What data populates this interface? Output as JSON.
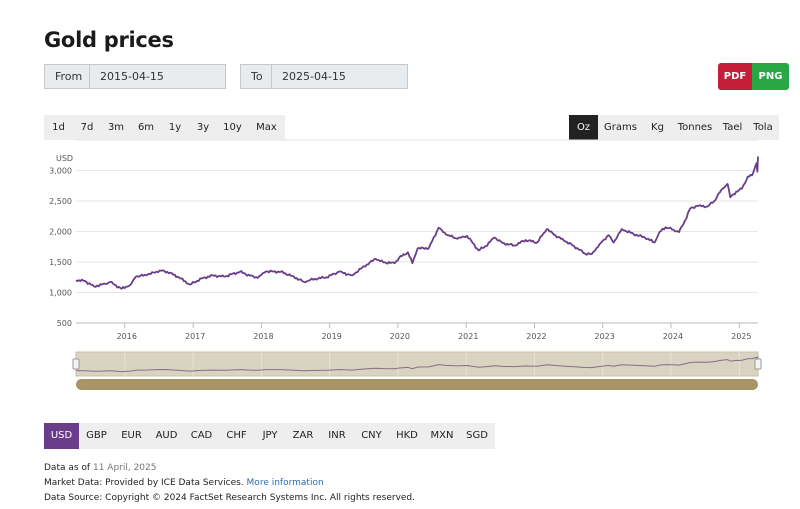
{
  "page": {
    "title": "Gold prices"
  },
  "date_range": {
    "from_label": "From",
    "from_value": "2015-04-15",
    "to_label": "To",
    "to_value": "2025-04-15"
  },
  "export": {
    "pdf_label": "PDF",
    "png_label": "PNG",
    "pdf_color": "#c41e3a",
    "png_color": "#28a745"
  },
  "range_buttons": [
    "1d",
    "7d",
    "3m",
    "6m",
    "1y",
    "3y",
    "10y",
    "Max"
  ],
  "unit_buttons": [
    "Oz",
    "Grams",
    "Kg",
    "Tonnes",
    "Tael",
    "Tola"
  ],
  "unit_selected": "Oz",
  "currency_buttons": [
    "USD",
    "GBP",
    "EUR",
    "AUD",
    "CAD",
    "CHF",
    "JPY",
    "ZAR",
    "INR",
    "CNY",
    "HKD",
    "MXN",
    "SGD"
  ],
  "currency_selected": "USD",
  "footer": {
    "data_as_of_label": "Data as of",
    "data_as_of_value": "11 April, 2025",
    "market_data_text": "Market Data: Provided by ICE Data Services.",
    "more_info_link": "More information",
    "source_text": "Data Source: Copyright © 2024 FactSet Research Systems Inc. All rights reserved."
  },
  "colors": {
    "line": "#6a3d8a",
    "navigator_bg": "#d9d3c2",
    "scrollbar": "#a89466",
    "active_unit_bg": "#222222",
    "active_currency_bg": "#6a3d8a"
  },
  "chart_data": {
    "type": "line",
    "ylabel": "USD",
    "ylim": [
      500,
      3500
    ],
    "yticks": [
      500,
      1000,
      1500,
      2000,
      2500,
      3000
    ],
    "ytick_labels": [
      "500",
      "1,000",
      "1,500",
      "2,000",
      "2,500",
      "3,000"
    ],
    "xlim": [
      "2015-04-15",
      "2025-04-11"
    ],
    "xticks": [
      "2016",
      "2017",
      "2018",
      "2019",
      "2020",
      "2021",
      "2022",
      "2023",
      "2024",
      "2025"
    ],
    "grid": "horizontal",
    "series": [
      {
        "name": "",
        "x": [
          "2015-04-15",
          "2015-06-01",
          "2015-07-20",
          "2015-09-01",
          "2015-10-15",
          "2015-12-15",
          "2016-02-01",
          "2016-03-01",
          "2016-05-01",
          "2016-07-06",
          "2016-08-15",
          "2016-10-10",
          "2016-12-15",
          "2017-02-15",
          "2017-04-15",
          "2017-06-15",
          "2017-09-08",
          "2017-11-01",
          "2017-12-12",
          "2018-01-25",
          "2018-04-15",
          "2018-06-15",
          "2018-08-16",
          "2018-10-15",
          "2018-12-15",
          "2019-02-20",
          "2019-05-01",
          "2019-06-25",
          "2019-09-04",
          "2019-10-15",
          "2019-12-15",
          "2020-01-08",
          "2020-02-24",
          "2020-03-19",
          "2020-04-15",
          "2020-06-15",
          "2020-08-06",
          "2020-09-15",
          "2020-11-15",
          "2021-01-05",
          "2021-03-08",
          "2021-04-15",
          "2021-06-01",
          "2021-07-15",
          "2021-09-15",
          "2021-11-15",
          "2022-01-15",
          "2022-03-08",
          "2022-04-15",
          "2022-06-15",
          "2022-08-01",
          "2022-09-28",
          "2022-11-03",
          "2022-12-15",
          "2023-02-01",
          "2023-02-28",
          "2023-04-13",
          "2023-06-15",
          "2023-08-15",
          "2023-10-05",
          "2023-11-01",
          "2023-12-04",
          "2024-01-15",
          "2024-02-14",
          "2024-03-15",
          "2024-04-12",
          "2024-05-20",
          "2024-07-15",
          "2024-08-20",
          "2024-09-26",
          "2024-10-30",
          "2024-11-14",
          "2024-12-15",
          "2025-01-15",
          "2025-02-15",
          "2025-03-10",
          "2025-04-03",
          "2025-04-08",
          "2025-04-11"
        ],
        "y": [
          1200,
          1190,
          1100,
          1130,
          1170,
          1060,
          1130,
          1260,
          1290,
          1360,
          1340,
          1260,
          1130,
          1230,
          1280,
          1260,
          1340,
          1275,
          1240,
          1345,
          1340,
          1270,
          1175,
          1225,
          1250,
          1340,
          1280,
          1410,
          1550,
          1495,
          1480,
          1570,
          1660,
          1480,
          1720,
          1730,
          2060,
          1950,
          1880,
          1930,
          1690,
          1760,
          1900,
          1810,
          1770,
          1860,
          1820,
          2040,
          1950,
          1840,
          1760,
          1640,
          1630,
          1790,
          1940,
          1820,
          2040,
          1960,
          1900,
          1820,
          1990,
          2070,
          2030,
          1990,
          2170,
          2370,
          2420,
          2410,
          2500,
          2680,
          2780,
          2560,
          2650,
          2700,
          2900,
          2920,
          3120,
          2980,
          3230
        ]
      }
    ]
  }
}
